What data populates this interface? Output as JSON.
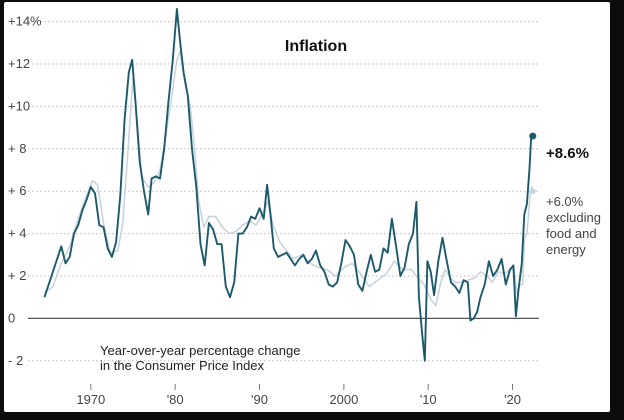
{
  "chart_data": {
    "type": "line",
    "title": "Inflation",
    "annotation": [
      "Year-over-year percentage change",
      "in the Consumer Price Index"
    ],
    "ylim": [
      -3,
      14.5
    ],
    "xlim": [
      1963.5,
      2022.9
    ],
    "y_ticks": [
      {
        "value": 14,
        "label": "+14%"
      },
      {
        "value": 12,
        "label": "+12"
      },
      {
        "value": 10,
        "label": "+10"
      },
      {
        "value": 8,
        "label": "+ 8"
      },
      {
        "value": 6,
        "label": "+ 6"
      },
      {
        "value": 4,
        "label": "+ 4"
      },
      {
        "value": 2,
        "label": "+ 2"
      },
      {
        "value": 0,
        "label": "0"
      },
      {
        "value": -2,
        "label": "- 2"
      }
    ],
    "x_ticks": [
      {
        "value": 1970,
        "label": "1970"
      },
      {
        "value": 1980,
        "label": "'80"
      },
      {
        "value": 1990,
        "label": "'90"
      },
      {
        "value": 2000,
        "label": "2000"
      },
      {
        "value": 2010,
        "label": "'10"
      },
      {
        "value": 2020,
        "label": "'20"
      }
    ],
    "grid": "horizontal",
    "colors": {
      "headline": "#1b5a6b",
      "core": "#c8d4dd"
    },
    "series": [
      {
        "name": "",
        "color": "#1b5a6b",
        "end_label": "+8.6%",
        "points": [
          [
            1964.5,
            1.0
          ],
          [
            1965.0,
            1.6
          ],
          [
            1965.5,
            2.2
          ],
          [
            1966.0,
            2.8
          ],
          [
            1966.5,
            3.4
          ],
          [
            1967.0,
            2.6
          ],
          [
            1967.5,
            2.9
          ],
          [
            1968.0,
            4.0
          ],
          [
            1968.5,
            4.4
          ],
          [
            1969.0,
            5.1
          ],
          [
            1969.5,
            5.6
          ],
          [
            1970.0,
            6.2
          ],
          [
            1970.5,
            5.9
          ],
          [
            1971.0,
            4.4
          ],
          [
            1971.5,
            4.3
          ],
          [
            1972.0,
            3.3
          ],
          [
            1972.5,
            2.9
          ],
          [
            1973.0,
            3.6
          ],
          [
            1973.5,
            5.8
          ],
          [
            1974.0,
            9.4
          ],
          [
            1974.5,
            11.6
          ],
          [
            1974.9,
            12.2
          ],
          [
            1975.3,
            10.2
          ],
          [
            1975.8,
            7.4
          ],
          [
            1976.3,
            6.0
          ],
          [
            1976.8,
            4.9
          ],
          [
            1977.2,
            6.6
          ],
          [
            1977.7,
            6.7
          ],
          [
            1978.2,
            6.6
          ],
          [
            1978.7,
            8.0
          ],
          [
            1979.2,
            10.2
          ],
          [
            1979.7,
            12.1
          ],
          [
            1980.2,
            14.6
          ],
          [
            1980.6,
            13.0
          ],
          [
            1981.0,
            11.6
          ],
          [
            1981.5,
            10.5
          ],
          [
            1982.0,
            8.0
          ],
          [
            1982.5,
            6.2
          ],
          [
            1983.0,
            3.5
          ],
          [
            1983.5,
            2.5
          ],
          [
            1984.0,
            4.5
          ],
          [
            1984.5,
            4.2
          ],
          [
            1985.0,
            3.5
          ],
          [
            1985.5,
            3.5
          ],
          [
            1986.0,
            1.5
          ],
          [
            1986.5,
            1.0
          ],
          [
            1987.0,
            1.7
          ],
          [
            1987.5,
            4.0
          ],
          [
            1988.0,
            4.0
          ],
          [
            1988.5,
            4.3
          ],
          [
            1989.0,
            4.8
          ],
          [
            1989.5,
            4.7
          ],
          [
            1990.0,
            5.2
          ],
          [
            1990.5,
            4.7
          ],
          [
            1990.9,
            6.3
          ],
          [
            1991.3,
            4.9
          ],
          [
            1991.7,
            3.3
          ],
          [
            1992.2,
            2.9
          ],
          [
            1992.7,
            3.0
          ],
          [
            1993.2,
            3.1
          ],
          [
            1993.7,
            2.8
          ],
          [
            1994.2,
            2.5
          ],
          [
            1994.7,
            2.8
          ],
          [
            1995.2,
            3.0
          ],
          [
            1995.7,
            2.6
          ],
          [
            1996.2,
            2.8
          ],
          [
            1996.7,
            3.2
          ],
          [
            1997.2,
            2.5
          ],
          [
            1997.7,
            2.2
          ],
          [
            1998.2,
            1.6
          ],
          [
            1998.7,
            1.5
          ],
          [
            1999.2,
            1.7
          ],
          [
            1999.7,
            2.6
          ],
          [
            2000.2,
            3.7
          ],
          [
            2000.7,
            3.4
          ],
          [
            2001.2,
            3.0
          ],
          [
            2001.7,
            1.6
          ],
          [
            2002.2,
            1.3
          ],
          [
            2002.7,
            2.2
          ],
          [
            2003.2,
            3.0
          ],
          [
            2003.7,
            2.2
          ],
          [
            2004.2,
            2.3
          ],
          [
            2004.7,
            3.3
          ],
          [
            2005.2,
            3.1
          ],
          [
            2005.7,
            4.7
          ],
          [
            2006.2,
            3.4
          ],
          [
            2006.7,
            2.0
          ],
          [
            2007.2,
            2.4
          ],
          [
            2007.7,
            3.5
          ],
          [
            2008.2,
            4.0
          ],
          [
            2008.6,
            5.5
          ],
          [
            2008.9,
            1.0
          ],
          [
            2009.3,
            -0.8
          ],
          [
            2009.6,
            -2.0
          ],
          [
            2009.9,
            2.7
          ],
          [
            2010.3,
            2.2
          ],
          [
            2010.7,
            1.1
          ],
          [
            2011.2,
            2.7
          ],
          [
            2011.7,
            3.8
          ],
          [
            2012.2,
            2.7
          ],
          [
            2012.7,
            1.7
          ],
          [
            2013.2,
            1.5
          ],
          [
            2013.7,
            1.2
          ],
          [
            2014.2,
            1.8
          ],
          [
            2014.7,
            1.7
          ],
          [
            2015.0,
            -0.1
          ],
          [
            2015.4,
            0.0
          ],
          [
            2015.8,
            0.3
          ],
          [
            2016.2,
            1.0
          ],
          [
            2016.7,
            1.6
          ],
          [
            2017.2,
            2.7
          ],
          [
            2017.7,
            2.0
          ],
          [
            2018.2,
            2.3
          ],
          [
            2018.7,
            2.8
          ],
          [
            2019.2,
            1.6
          ],
          [
            2019.7,
            2.3
          ],
          [
            2020.1,
            2.5
          ],
          [
            2020.4,
            0.1
          ],
          [
            2020.7,
            1.3
          ],
          [
            2021.1,
            2.6
          ],
          [
            2021.4,
            4.9
          ],
          [
            2021.7,
            5.4
          ],
          [
            2022.0,
            7.0
          ],
          [
            2022.2,
            8.5
          ],
          [
            2022.4,
            8.6
          ]
        ]
      },
      {
        "name": "",
        "color": "#c8d4dd",
        "end_label": [
          "+6.0%",
          "excluding",
          "food and",
          "energy"
        ],
        "points": [
          [
            1964.5,
            1.2
          ],
          [
            1965.5,
            1.5
          ],
          [
            1966.5,
            2.6
          ],
          [
            1967.5,
            3.4
          ],
          [
            1968.5,
            4.7
          ],
          [
            1969.5,
            5.8
          ],
          [
            1970.2,
            6.5
          ],
          [
            1970.8,
            6.3
          ],
          [
            1971.5,
            4.5
          ],
          [
            1972.3,
            3.1
          ],
          [
            1973.2,
            3.2
          ],
          [
            1973.8,
            4.5
          ],
          [
            1974.5,
            8.5
          ],
          [
            1975.0,
            11.3
          ],
          [
            1975.5,
            9.3
          ],
          [
            1976.0,
            6.7
          ],
          [
            1976.8,
            6.2
          ],
          [
            1977.5,
            6.4
          ],
          [
            1978.2,
            7.0
          ],
          [
            1978.8,
            8.4
          ],
          [
            1979.5,
            10.2
          ],
          [
            1980.2,
            12.2
          ],
          [
            1980.6,
            12.6
          ],
          [
            1981.2,
            11.0
          ],
          [
            1981.8,
            10.0
          ],
          [
            1982.3,
            8.0
          ],
          [
            1982.8,
            5.5
          ],
          [
            1983.4,
            4.3
          ],
          [
            1984.0,
            4.8
          ],
          [
            1984.8,
            4.8
          ],
          [
            1985.6,
            4.3
          ],
          [
            1986.4,
            4.0
          ],
          [
            1987.2,
            4.1
          ],
          [
            1988.0,
            4.4
          ],
          [
            1988.8,
            4.6
          ],
          [
            1989.6,
            4.4
          ],
          [
            1990.4,
            5.0
          ],
          [
            1991.0,
            5.5
          ],
          [
            1991.6,
            4.4
          ],
          [
            1992.4,
            3.6
          ],
          [
            1993.2,
            3.2
          ],
          [
            1994.0,
            2.8
          ],
          [
            1995.0,
            3.0
          ],
          [
            1996.0,
            2.6
          ],
          [
            1997.0,
            2.4
          ],
          [
            1998.0,
            2.3
          ],
          [
            1999.0,
            2.0
          ],
          [
            2000.0,
            2.4
          ],
          [
            2001.0,
            2.6
          ],
          [
            2002.0,
            2.1
          ],
          [
            2003.0,
            1.5
          ],
          [
            2004.0,
            1.8
          ],
          [
            2005.0,
            2.1
          ],
          [
            2006.0,
            2.7
          ],
          [
            2007.0,
            2.3
          ],
          [
            2008.0,
            2.3
          ],
          [
            2008.8,
            1.9
          ],
          [
            2009.5,
            1.6
          ],
          [
            2010.3,
            0.9
          ],
          [
            2010.9,
            0.6
          ],
          [
            2011.5,
            1.7
          ],
          [
            2012.0,
            2.3
          ],
          [
            2012.6,
            1.9
          ],
          [
            2013.3,
            1.7
          ],
          [
            2014.0,
            1.7
          ],
          [
            2014.7,
            1.8
          ],
          [
            2015.5,
            1.9
          ],
          [
            2016.2,
            2.2
          ],
          [
            2017.0,
            2.0
          ],
          [
            2017.6,
            1.7
          ],
          [
            2018.3,
            2.2
          ],
          [
            2019.0,
            2.1
          ],
          [
            2019.7,
            2.3
          ],
          [
            2020.2,
            2.3
          ],
          [
            2020.5,
            1.2
          ],
          [
            2020.9,
            1.6
          ],
          [
            2021.2,
            1.6
          ],
          [
            2021.4,
            3.8
          ],
          [
            2021.7,
            4.0
          ],
          [
            2021.9,
            4.9
          ],
          [
            2022.1,
            6.0
          ],
          [
            2022.3,
            6.2
          ],
          [
            2022.4,
            6.0
          ]
        ]
      }
    ]
  }
}
